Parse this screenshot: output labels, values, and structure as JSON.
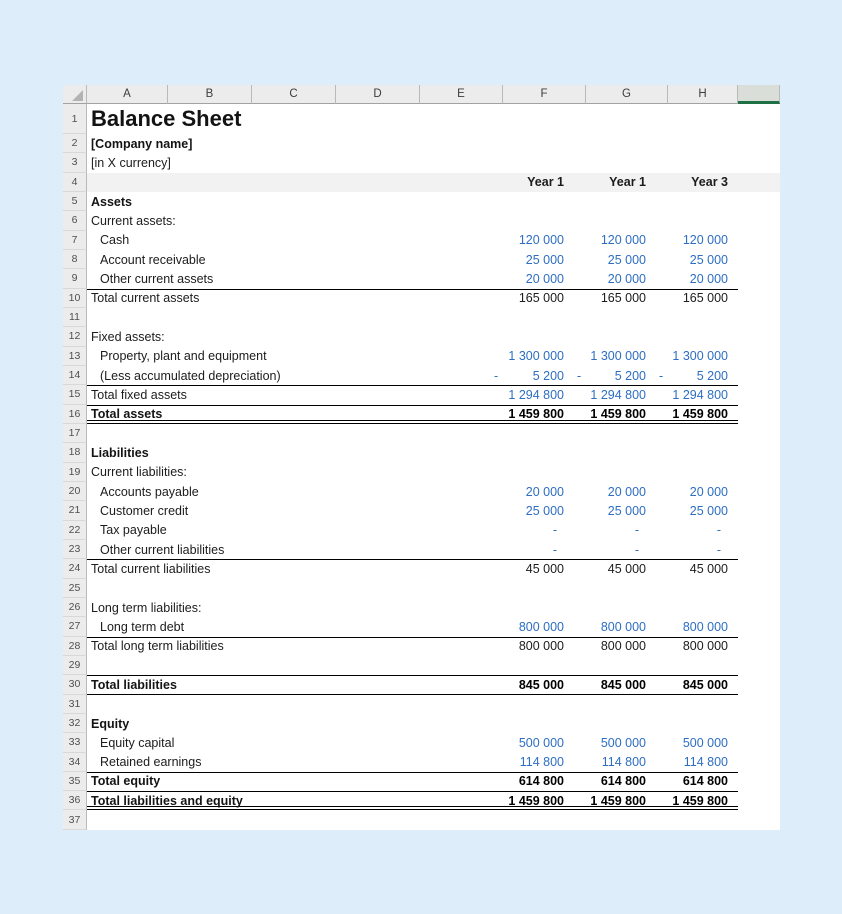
{
  "sheet": {
    "title": "Balance Sheet",
    "column_headers": [
      "A",
      "B",
      "C",
      "D",
      "E",
      "F",
      "G",
      "H"
    ],
    "year_columns": [
      "F",
      "G",
      "H"
    ],
    "colors": {
      "page_background": "#ddeefa",
      "header_gray": "#ececec",
      "selected_column_green": "#1f7145",
      "band_gray": "#f2f2f2",
      "value_blue": "#2d6ec3",
      "text_black": "#1c1c1c"
    },
    "rows": [
      {
        "n": 1,
        "label": "Balance Sheet",
        "style": "title"
      },
      {
        "n": 2,
        "label": "[Company name]",
        "style": "bold"
      },
      {
        "n": 3,
        "label": "[in X currency]"
      },
      {
        "n": 4,
        "band": true,
        "values": [
          "Year 1",
          "Year 1",
          "Year 3"
        ],
        "vstyle": "year"
      },
      {
        "n": 5,
        "label": "Assets",
        "style": "bold"
      },
      {
        "n": 6,
        "label": "Current assets:"
      },
      {
        "n": 7,
        "label": "Cash",
        "indent": true,
        "values": [
          "120 000",
          "120 000",
          "120 000"
        ],
        "vstyle": "blue"
      },
      {
        "n": 8,
        "label": "Account receivable",
        "indent": true,
        "values": [
          "25 000",
          "25 000",
          "25 000"
        ],
        "vstyle": "blue"
      },
      {
        "n": 9,
        "label": "Other current assets",
        "indent": true,
        "values": [
          "20 000",
          "20 000",
          "20 000"
        ],
        "vstyle": "blue"
      },
      {
        "n": 10,
        "label": "Total current assets",
        "values": [
          "165 000",
          "165 000",
          "165 000"
        ],
        "vstyle": "black",
        "rules": [
          "top"
        ]
      },
      {
        "n": 11
      },
      {
        "n": 12,
        "label": "Fixed assets:"
      },
      {
        "n": 13,
        "label": "Property, plant and equipment",
        "indent": true,
        "values": [
          "1 300 000",
          "1 300 000",
          "1 300 000"
        ],
        "vstyle": "blue"
      },
      {
        "n": 14,
        "label": "(Less accumulated depreciation)",
        "indent": true,
        "values": [
          "5 200",
          "5 200",
          "5 200"
        ],
        "vstyle": "blue",
        "negative": true
      },
      {
        "n": 15,
        "label": "Total fixed assets",
        "values": [
          "1 294 800",
          "1 294 800",
          "1 294 800"
        ],
        "vstyle": "blue",
        "rules": [
          "top"
        ]
      },
      {
        "n": 16,
        "label": "Total assets",
        "style": "bold",
        "values": [
          "1 459 800",
          "1 459 800",
          "1 459 800"
        ],
        "vstyle": "bold",
        "rules": [
          "top",
          "double-bottom"
        ]
      },
      {
        "n": 17
      },
      {
        "n": 18,
        "label": "Liabilities",
        "style": "bold"
      },
      {
        "n": 19,
        "label": "Current liabilities:"
      },
      {
        "n": 20,
        "label": "Accounts payable",
        "indent": true,
        "values": [
          "20 000",
          "20 000",
          "20 000"
        ],
        "vstyle": "blue"
      },
      {
        "n": 21,
        "label": "Customer credit",
        "indent": true,
        "values": [
          "25 000",
          "25 000",
          "25 000"
        ],
        "vstyle": "blue"
      },
      {
        "n": 22,
        "label": "Tax payable",
        "indent": true,
        "values": [
          "-  ",
          "-  ",
          "-  "
        ],
        "vstyle": "blue"
      },
      {
        "n": 23,
        "label": "Other current liabilities",
        "indent": true,
        "values": [
          "-  ",
          "-  ",
          "-  "
        ],
        "vstyle": "blue"
      },
      {
        "n": 24,
        "label": "Total current liabilities",
        "values": [
          "45 000",
          "45 000",
          "45 000"
        ],
        "vstyle": "black",
        "rules": [
          "top"
        ]
      },
      {
        "n": 25
      },
      {
        "n": 26,
        "label": "Long term liabilities:"
      },
      {
        "n": 27,
        "label": "Long term debt",
        "indent": true,
        "values": [
          "800 000",
          "800 000",
          "800 000"
        ],
        "vstyle": "blue"
      },
      {
        "n": 28,
        "label": "Total long term liabilities",
        "values": [
          "800 000",
          "800 000",
          "800 000"
        ],
        "vstyle": "black",
        "rules": [
          "top"
        ]
      },
      {
        "n": 29
      },
      {
        "n": 30,
        "label": "Total liabilities",
        "style": "bold",
        "values": [
          "845 000",
          "845 000",
          "845 000"
        ],
        "vstyle": "bold",
        "rules": [
          "top",
          "bottom"
        ]
      },
      {
        "n": 31
      },
      {
        "n": 32,
        "label": "Equity",
        "style": "bold"
      },
      {
        "n": 33,
        "label": "Equity capital",
        "indent": true,
        "values": [
          "500 000",
          "500 000",
          "500 000"
        ],
        "vstyle": "blue"
      },
      {
        "n": 34,
        "label": "Retained earnings",
        "indent": true,
        "values": [
          "114 800",
          "114 800",
          "114 800"
        ],
        "vstyle": "blue"
      },
      {
        "n": 35,
        "label": "Total equity",
        "style": "bold",
        "values": [
          "614 800",
          "614 800",
          "614 800"
        ],
        "vstyle": "bold",
        "rules": [
          "top"
        ]
      },
      {
        "n": 36,
        "label": "Total liabilities and equity",
        "style": "bold",
        "values": [
          "1 459 800",
          "1 459 800",
          "1 459 800"
        ],
        "vstyle": "bold",
        "rules": [
          "top",
          "double-bottom"
        ]
      },
      {
        "n": 37
      }
    ]
  }
}
